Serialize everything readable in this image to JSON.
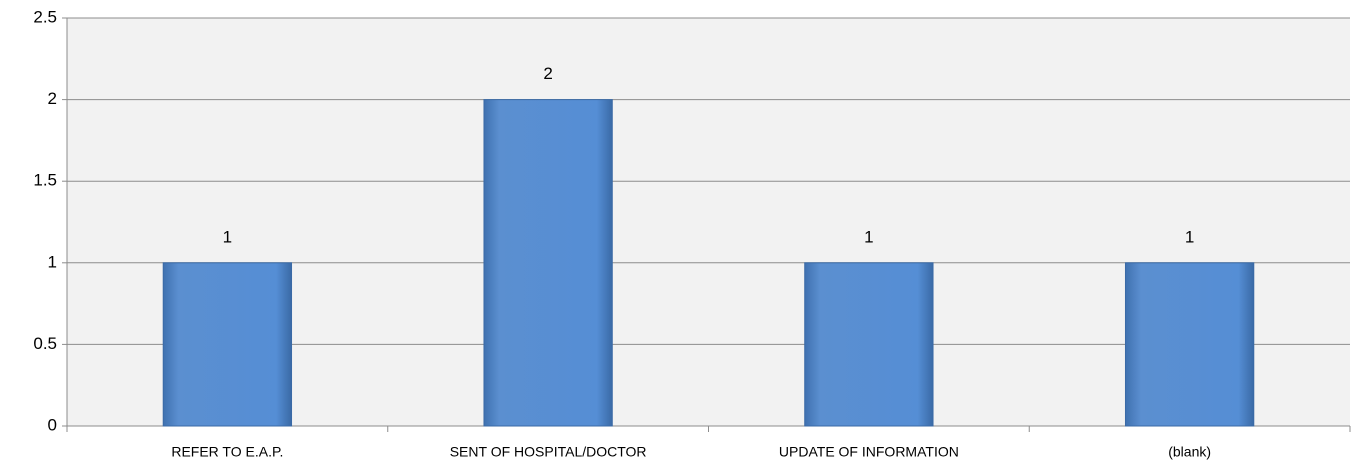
{
  "chart_data": {
    "type": "bar",
    "categories": [
      "REFER TO E.A.P.",
      "SENT OF HOSPITAL/DOCTOR",
      "UPDATE OF INFORMATION",
      "(blank)"
    ],
    "values": [
      1,
      2,
      1,
      1
    ],
    "color": "#558ed5",
    "ylim": [
      0,
      2.5
    ],
    "yticks": [
      0,
      0.5,
      1,
      1.5,
      2,
      2.5
    ],
    "grid": true
  }
}
